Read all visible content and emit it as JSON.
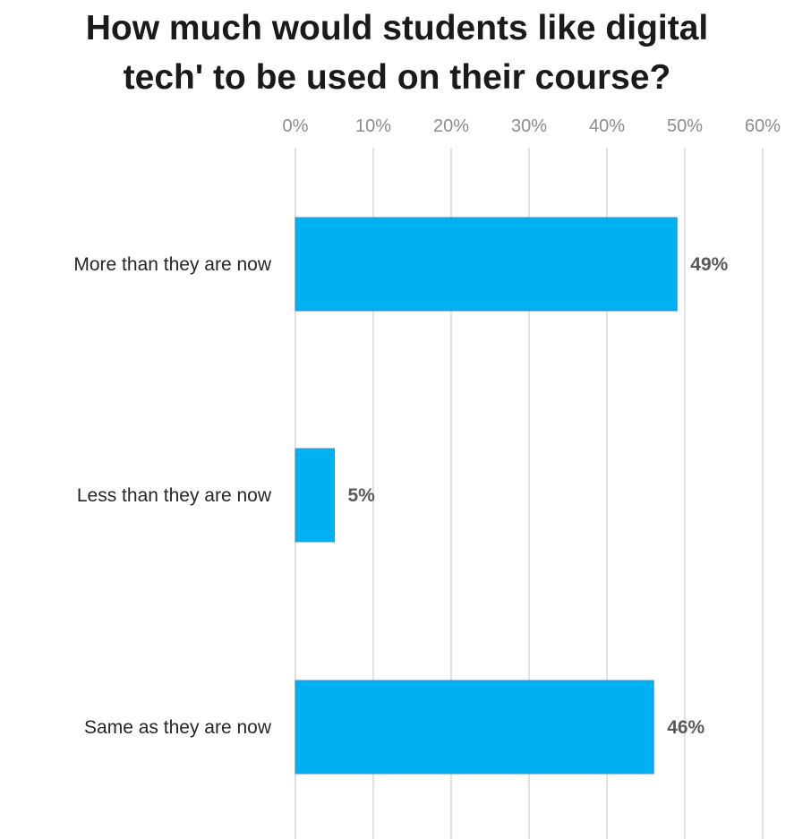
{
  "chart_data": {
    "type": "bar",
    "orientation": "horizontal",
    "title_lines": [
      "How much would students like digital",
      "tech' to be used on their course?"
    ],
    "categories": [
      "More than they are now",
      "Less than they are now",
      "Same as they are now"
    ],
    "values": [
      49,
      5,
      46
    ],
    "value_labels": [
      "49%",
      "5%",
      "46%"
    ],
    "xlim": [
      0,
      60
    ],
    "xticks": [
      0,
      10,
      20,
      30,
      40,
      50,
      60
    ],
    "xtick_labels": [
      "0%",
      "10%",
      "20%",
      "30%",
      "40%",
      "50%",
      "60%"
    ],
    "x_axis_position": "top",
    "grid": true,
    "legend": "none",
    "bar_color": "#00b0f0",
    "bar_edge_color": "#3a8fc8",
    "grid_color": "#d9d9d9"
  }
}
